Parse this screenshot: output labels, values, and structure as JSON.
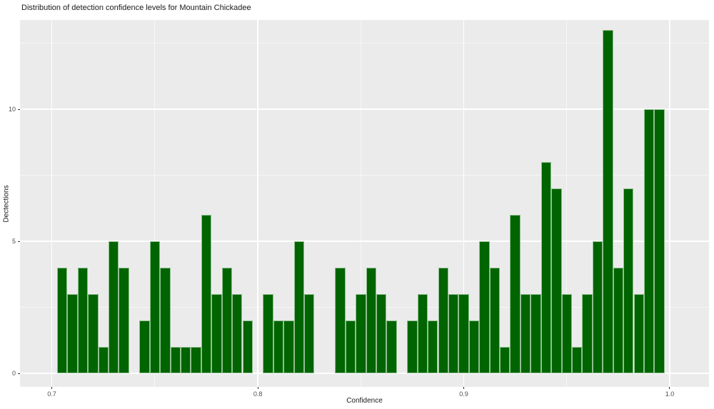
{
  "chart_data": {
    "type": "bar",
    "subtype": "histogram",
    "title": "Distribution of detection confidence levels for Mountain Chickadee",
    "xlabel": "Confidence",
    "ylabel": "Dectections",
    "bin_start": 0.7025,
    "bin_width": 0.005,
    "bin_counts": [
      4,
      3,
      4,
      3,
      1,
      5,
      4,
      0,
      2,
      5,
      4,
      1,
      1,
      1,
      6,
      3,
      4,
      3,
      2,
      0,
      3,
      2,
      2,
      5,
      3,
      0,
      0,
      4,
      2,
      3,
      4,
      3,
      2,
      0,
      2,
      3,
      2,
      4,
      3,
      3,
      2,
      5,
      4,
      1,
      6,
      3,
      3,
      8,
      7,
      3,
      1,
      3,
      5,
      13,
      4,
      7,
      3,
      10,
      10
    ],
    "x_ticks": [
      0.7,
      0.8,
      0.9,
      1.0
    ],
    "x_tick_labels": [
      "0.7",
      "0.8",
      "0.9",
      "1.0"
    ],
    "x_minor_ticks": [
      0.75,
      0.85,
      0.95
    ],
    "y_ticks": [
      0,
      5,
      10
    ],
    "y_tick_labels": [
      "0",
      "5",
      "10"
    ],
    "y_minor_ticks": [
      2.5,
      7.5,
      12.5
    ],
    "ylim": [
      0,
      13.65
    ],
    "grid": "major-minor white on gray panel",
    "legend": "none",
    "colors": {
      "bar_fill": "#006400",
      "bar_edge": "#8fbf8f",
      "panel_background": "#ebebeb",
      "gridline": "#ffffff",
      "tick_text": "#4d4d4d",
      "axis_text": "#1a1a1a",
      "tick_mark": "#333333",
      "figure_background": "#ffffff"
    }
  }
}
